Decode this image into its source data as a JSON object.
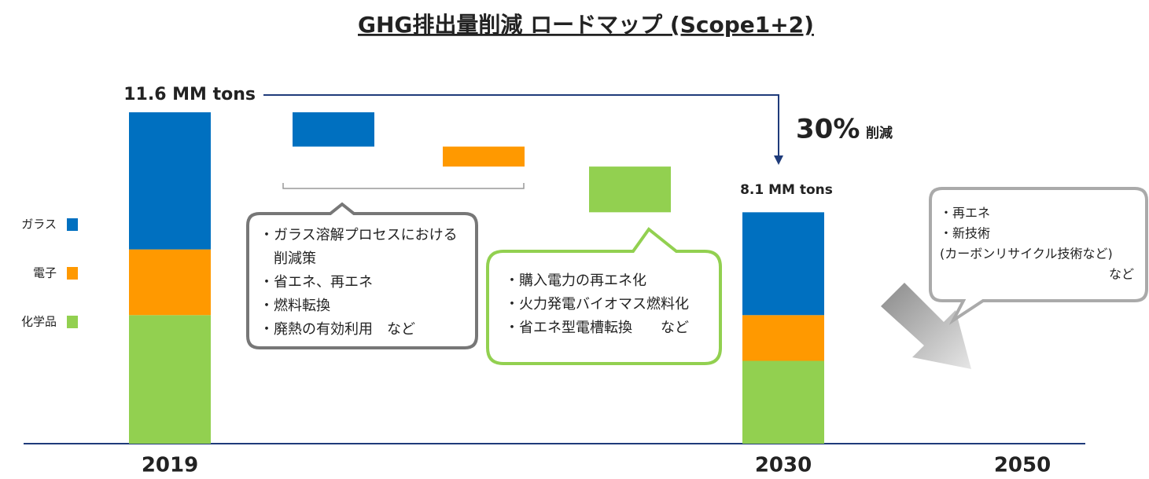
{
  "chart_data": {
    "type": "waterfall",
    "title": "GHG排出量削減 ロードマップ (Scope1+2)",
    "categories": [
      "2019",
      "2030",
      "2050"
    ],
    "series": [
      {
        "name": "ガラス",
        "color": "#0070c0",
        "values": [
          4.8,
          3.6,
          null
        ],
        "reduction": 1.2
      },
      {
        "name": "電子",
        "color": "#ff9900",
        "values": [
          2.3,
          1.6,
          null
        ],
        "reduction": 0.7
      },
      {
        "name": "化学品",
        "color": "#92d050",
        "values": [
          4.5,
          2.9,
          null
        ],
        "reduction": 1.6
      }
    ],
    "totals": {
      "values": [
        11.6,
        8.1,
        null
      ],
      "value_labels": [
        "11.6 MM tons",
        "8.1 MM tons",
        null
      ]
    },
    "reduction_annotation": {
      "value": 30,
      "label": "30%",
      "text": "削減"
    },
    "callouts": [
      {
        "lines": [
          "・ガラス溶解プロセスにおける",
          "　削減策",
          "・省エネ、再エネ",
          "・燃料転換",
          "・廃熱の有効利用　など"
        ]
      },
      {
        "lines": [
          "・購入電力の再エネ化",
          "・火力発電バイオマス燃料化",
          "・省エネ型電槽転換　　など"
        ]
      },
      {
        "lines": [
          "・再エネ",
          "・新技術",
          "(カーボンリサイクル技術など)"
        ],
        "trailing": "など"
      }
    ]
  }
}
